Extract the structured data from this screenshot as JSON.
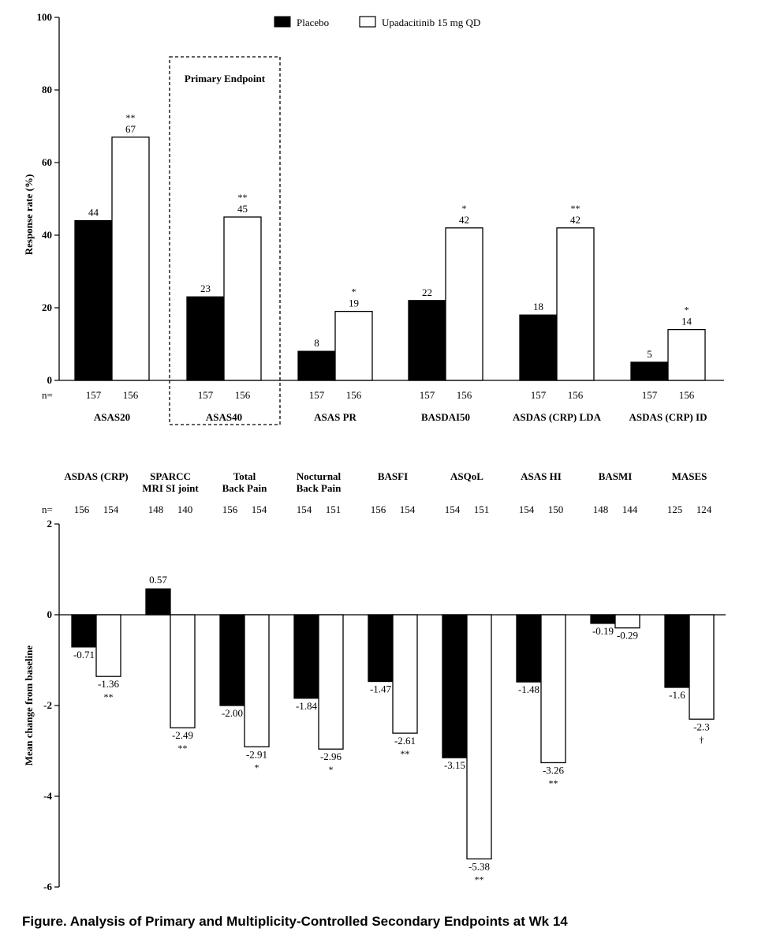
{
  "caption": "Figure. Analysis of Primary and Multiplicity-Controlled Secondary Endpoints at Wk 14",
  "chart_data": [
    {
      "type": "bar",
      "ylabel": "Response rate (%)",
      "ylim": [
        0,
        100
      ],
      "yticks": [
        "0",
        "20",
        "40",
        "60",
        "80",
        "100"
      ],
      "legend": {
        "placement": "top-center",
        "entries": [
          "Placebo",
          "Upadacitinib 15 mg QD"
        ]
      },
      "n_label": "n=",
      "annotation_box": {
        "label": "Primary Endpoint",
        "category": "ASAS40"
      },
      "categories": [
        "ASAS20",
        "ASAS40",
        "ASAS PR",
        "BASDAI50",
        "ASDAS (CRP) LDA",
        "ASDAS (CRP) ID"
      ],
      "series": [
        {
          "name": "Placebo",
          "color": "#000000",
          "values": [
            44,
            23,
            8,
            22,
            18,
            5
          ],
          "labels": [
            "44",
            "23",
            "8",
            "22",
            "18",
            "5"
          ],
          "n": [
            "157",
            "157",
            "157",
            "157",
            "157",
            "157"
          ]
        },
        {
          "name": "Upadacitinib 15 mg QD",
          "color": "#ffffff",
          "values": [
            67,
            45,
            19,
            42,
            42,
            14
          ],
          "labels": [
            "67",
            "45",
            "19",
            "42",
            "42",
            "14"
          ],
          "n": [
            "156",
            "156",
            "156",
            "156",
            "156",
            "156"
          ]
        }
      ],
      "significance": [
        "**",
        "**",
        "*",
        "*",
        "**",
        "*"
      ]
    },
    {
      "type": "bar",
      "ylabel": "Mean change from baseline",
      "ylim": [
        -6,
        2
      ],
      "yticks": [
        "-6",
        "-4",
        "-2",
        "0",
        "2"
      ],
      "n_label": "n=",
      "categories": [
        [
          "ASDAS (CRP)"
        ],
        [
          "SPARCC",
          "MRI SI joint"
        ],
        [
          "Total",
          "Back Pain"
        ],
        [
          "Nocturnal",
          "Back Pain"
        ],
        [
          "BASFI"
        ],
        [
          "ASQoL"
        ],
        [
          "ASAS HI"
        ],
        [
          "BASMI"
        ],
        [
          "MASES"
        ]
      ],
      "series": [
        {
          "name": "Placebo",
          "color": "#000000",
          "values": [
            -0.71,
            0.57,
            -2.0,
            -1.84,
            -1.47,
            -3.15,
            -1.48,
            -0.19,
            -1.6
          ],
          "labels": [
            "-0.71",
            "0.57",
            "-2.00",
            "-1.84",
            "-1.47",
            "-3.15",
            "-1.48",
            "-0.19",
            "-1.6"
          ],
          "n": [
            "156",
            "148",
            "156",
            "154",
            "156",
            "154",
            "154",
            "148",
            "125"
          ]
        },
        {
          "name": "Upadacitinib 15 mg QD",
          "color": "#ffffff",
          "values": [
            -1.36,
            -2.49,
            -2.91,
            -2.96,
            -2.61,
            -5.38,
            -3.26,
            -0.29,
            -2.3
          ],
          "labels": [
            "-1.36",
            "-2.49",
            "-2.91",
            "-2.96",
            "-2.61",
            "-5.38",
            "-3.26",
            "-0.29",
            "-2.3"
          ],
          "n": [
            "154",
            "140",
            "154",
            "151",
            "154",
            "151",
            "150",
            "144",
            "124"
          ]
        }
      ],
      "significance": [
        "**",
        "**",
        "*",
        "*",
        "**",
        "**",
        "**",
        "",
        "†"
      ]
    }
  ]
}
